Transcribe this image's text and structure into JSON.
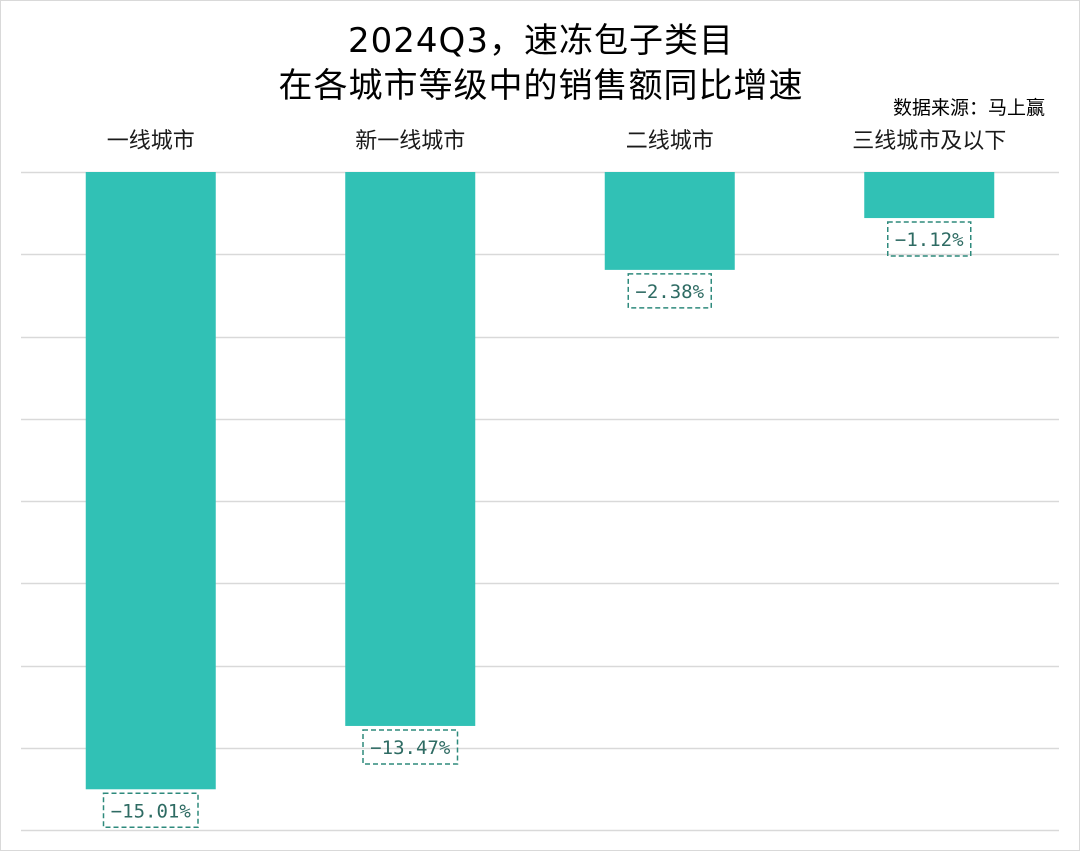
{
  "chart_data": {
    "type": "bar",
    "title_line1": "2024Q3，速冻包子类目",
    "title_line2": "在各城市等级中的销售额同比增速",
    "source": "数据来源：马上赢",
    "categories": [
      "一线城市",
      "新一线城市",
      "二线城市",
      "三线城市及以下"
    ],
    "values": [
      -15.01,
      -13.47,
      -2.38,
      -1.12
    ],
    "labels": [
      "−15.01%",
      "−13.47%",
      "−2.38%",
      "−1.12%"
    ],
    "ylim": [
      -16,
      0
    ],
    "grid": true,
    "category_axis_position": "top",
    "legend": "none",
    "bar_color": "#31c1b5",
    "label_border_color": "#2e8a7c",
    "label_text_color": "#2e6b63",
    "grid_color": "#d9d9d9"
  }
}
